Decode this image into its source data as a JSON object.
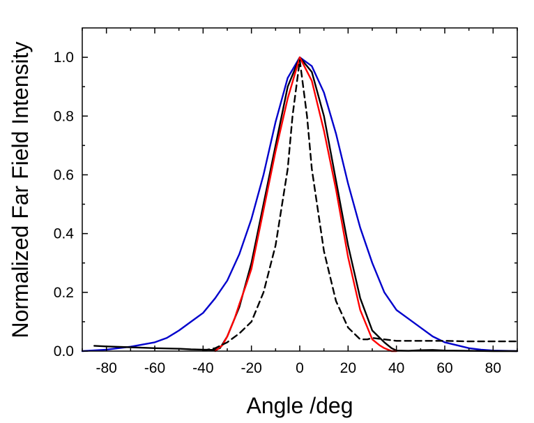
{
  "chart_data": {
    "type": "line",
    "title": "",
    "xlabel": "Angle /deg",
    "ylabel": "Normalized Far Field Intensity",
    "xlim": [
      -90,
      90
    ],
    "ylim": [
      0,
      1.1
    ],
    "x_ticks": [
      -80,
      -60,
      -40,
      -20,
      0,
      20,
      40,
      60,
      80
    ],
    "x_tick_labels": [
      "-80",
      "-60",
      "-40",
      "-20",
      "0",
      "20",
      "40",
      "60",
      "80"
    ],
    "y_ticks": [
      0,
      0.2,
      0.4,
      0.6,
      0.8,
      1.0
    ],
    "y_tick_labels": [
      "0.0",
      "0.2",
      "0.4",
      "0.6",
      "0.8",
      "1.0"
    ],
    "grid": false,
    "legend": "none",
    "series": [
      {
        "color": "#0000cc",
        "dash": "solid",
        "x": [
          -90,
          -80,
          -70,
          -60,
          -55,
          -50,
          -45,
          -40,
          -35,
          -30,
          -25,
          -20,
          -15,
          -10,
          -5,
          0,
          5,
          10,
          15,
          20,
          25,
          30,
          35,
          40,
          45,
          50,
          55,
          60,
          65,
          70,
          75,
          80,
          90
        ],
        "y": [
          0.0,
          0.005,
          0.015,
          0.03,
          0.045,
          0.07,
          0.1,
          0.13,
          0.18,
          0.24,
          0.33,
          0.45,
          0.6,
          0.78,
          0.93,
          1.0,
          0.97,
          0.88,
          0.74,
          0.57,
          0.42,
          0.3,
          0.2,
          0.14,
          0.11,
          0.08,
          0.05,
          0.03,
          0.02,
          0.01,
          0.005,
          0.002,
          0.0
        ]
      },
      {
        "color": "#000000",
        "dash": "solid",
        "x": [
          -85,
          -80,
          -70,
          -60,
          -50,
          -45,
          -40,
          -35,
          -33,
          -30,
          -25,
          -20,
          -15,
          -10,
          -5,
          0,
          5,
          10,
          15,
          20,
          25,
          30,
          35,
          38,
          40,
          45,
          50,
          55,
          60,
          70,
          80,
          90
        ],
        "y": [
          0.018,
          0.016,
          0.013,
          0.01,
          0.008,
          0.006,
          0.005,
          0.004,
          0.01,
          0.05,
          0.15,
          0.3,
          0.5,
          0.7,
          0.9,
          1.0,
          0.95,
          0.8,
          0.58,
          0.36,
          0.18,
          0.07,
          0.03,
          0.01,
          0.002,
          0.001,
          0.003,
          0.004,
          0.002,
          0.001,
          0.0,
          0.0
        ]
      },
      {
        "color": "#ff0000",
        "dash": "solid",
        "x": [
          -35,
          -32,
          -30,
          -27,
          -25,
          -22,
          -20,
          -15,
          -10,
          -5,
          0,
          5,
          10,
          15,
          20,
          25,
          30,
          33,
          35,
          38,
          40
        ],
        "y": [
          0.0,
          0.02,
          0.05,
          0.11,
          0.16,
          0.23,
          0.28,
          0.48,
          0.68,
          0.86,
          1.0,
          0.92,
          0.75,
          0.55,
          0.32,
          0.14,
          0.04,
          0.02,
          0.01,
          0.0,
          0.0
        ]
      },
      {
        "color": "#000000",
        "dash": "dashed",
        "x": [
          -40,
          -35,
          -30,
          -25,
          -20,
          -15,
          -10,
          -5,
          -3,
          0,
          3,
          5,
          10,
          15,
          20,
          25,
          28,
          30,
          35,
          40,
          50,
          60,
          70,
          80,
          90
        ],
        "y": [
          0.002,
          0.01,
          0.03,
          0.06,
          0.1,
          0.2,
          0.36,
          0.62,
          0.8,
          0.99,
          0.8,
          0.62,
          0.34,
          0.17,
          0.08,
          0.04,
          0.04,
          0.045,
          0.04,
          0.035,
          0.035,
          0.035,
          0.033,
          0.033,
          0.033
        ]
      }
    ]
  }
}
